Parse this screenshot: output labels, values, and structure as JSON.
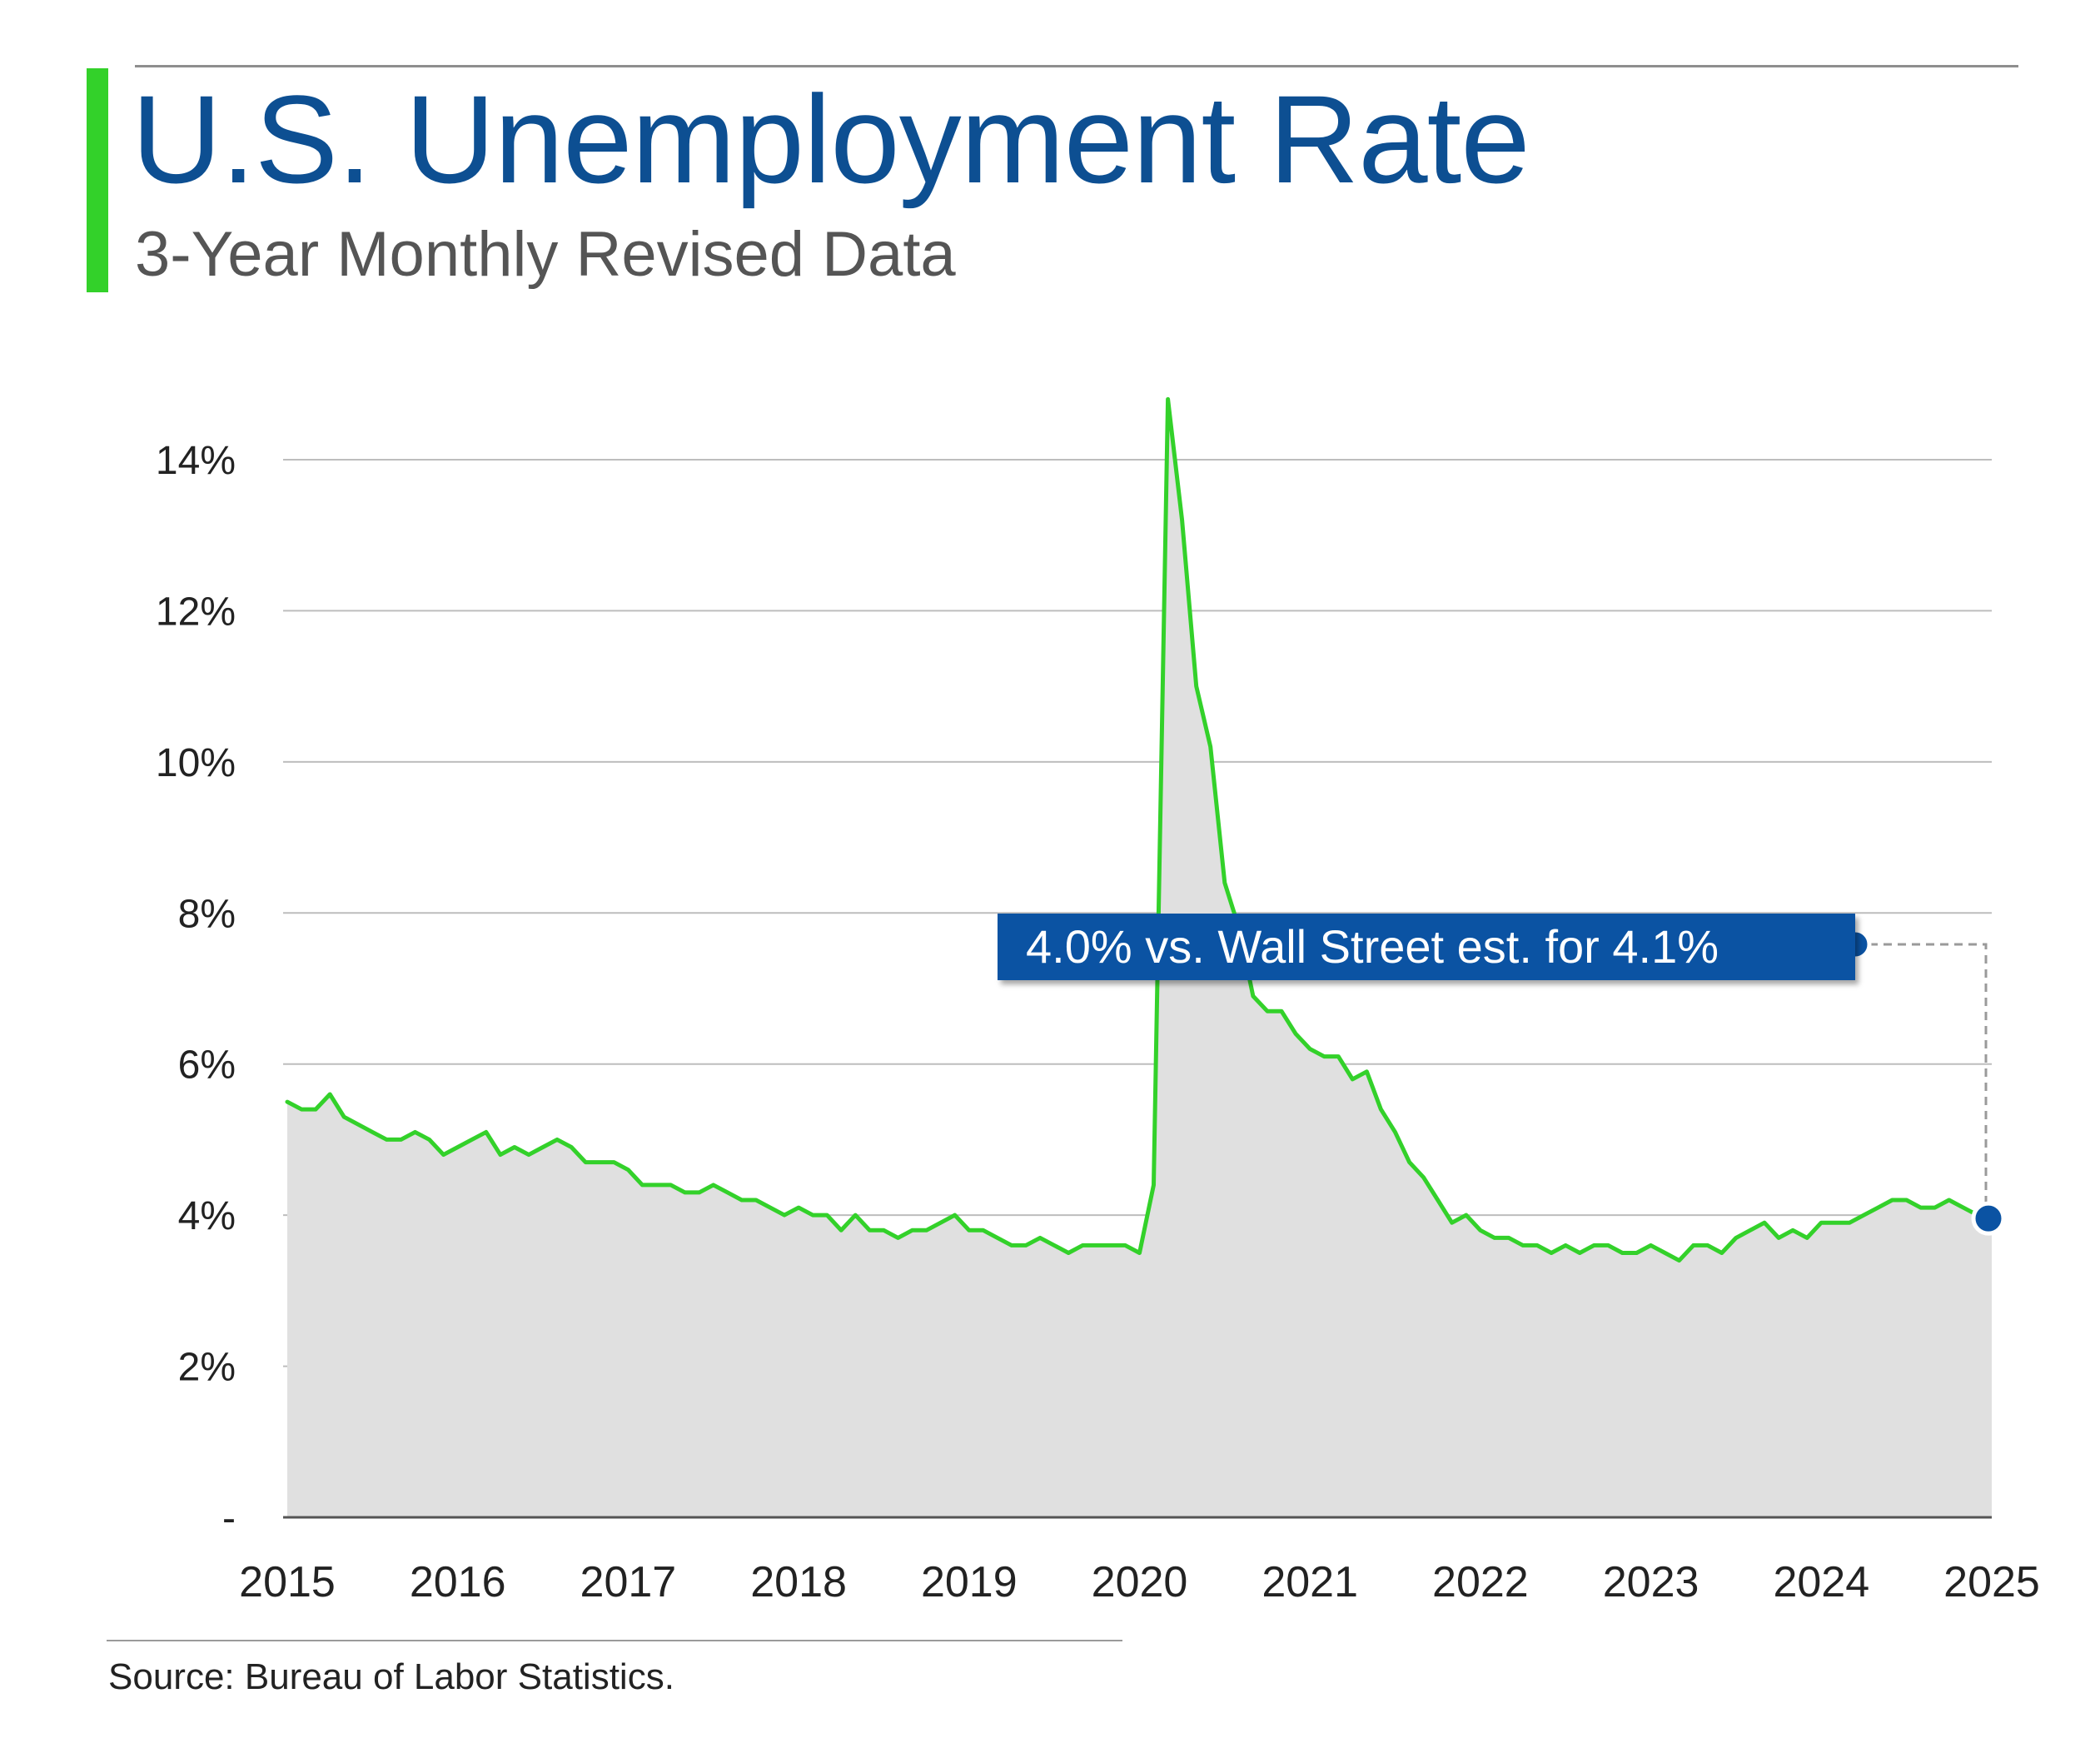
{
  "header": {
    "title": "U.S. Unemployment Rate",
    "subtitle": "3-Year Monthly Revised Data"
  },
  "footer": {
    "source": "Source: Bureau of Labor Statistics."
  },
  "annotation": {
    "text": "4.0% vs. Wall Street est. for 4.1%"
  },
  "colors": {
    "title": "#0d4f92",
    "accent": "#33d12a",
    "line": "#33d12a",
    "area": "#e0e0e0",
    "callout": "#0b53a3",
    "marker": "#0b53a3"
  },
  "chart_data": {
    "type": "area",
    "title": "U.S. Unemployment Rate",
    "subtitle": "3-Year Monthly Revised Data",
    "xlabel": "",
    "ylabel": "",
    "x_start": 2015.0,
    "x_step_years": 0.08333,
    "ylim": [
      0,
      14
    ],
    "xlim": [
      2015,
      2025
    ],
    "yticks": [
      {
        "value": 0,
        "label": "-"
      },
      {
        "value": 2,
        "label": "2%"
      },
      {
        "value": 4,
        "label": "4%"
      },
      {
        "value": 6,
        "label": "6%"
      },
      {
        "value": 8,
        "label": "8%"
      },
      {
        "value": 10,
        "label": "10%"
      },
      {
        "value": 12,
        "label": "12%"
      },
      {
        "value": 14,
        "label": "14%"
      }
    ],
    "xticks": [
      {
        "value": 2015,
        "label": "2015"
      },
      {
        "value": 2016,
        "label": "2016"
      },
      {
        "value": 2017,
        "label": "2017"
      },
      {
        "value": 2018,
        "label": "2018"
      },
      {
        "value": 2019,
        "label": "2019"
      },
      {
        "value": 2020,
        "label": "2020"
      },
      {
        "value": 2021,
        "label": "2021"
      },
      {
        "value": 2022,
        "label": "2022"
      },
      {
        "value": 2023,
        "label": "2023"
      },
      {
        "value": 2024,
        "label": "2024"
      },
      {
        "value": 2025,
        "label": "2025"
      }
    ],
    "grid": true,
    "series": [
      {
        "name": "Unemployment Rate",
        "values": [
          5.5,
          5.4,
          5.4,
          5.6,
          5.3,
          5.2,
          5.1,
          5.0,
          5.0,
          5.1,
          5.0,
          4.8,
          4.9,
          5.0,
          5.1,
          4.8,
          4.9,
          4.8,
          4.9,
          5.0,
          4.9,
          4.7,
          4.7,
          4.7,
          4.6,
          4.4,
          4.4,
          4.4,
          4.3,
          4.3,
          4.4,
          4.3,
          4.2,
          4.2,
          4.1,
          4.0,
          4.1,
          4.0,
          4.0,
          3.8,
          4.0,
          3.8,
          3.8,
          3.7,
          3.8,
          3.8,
          3.9,
          4.0,
          3.8,
          3.8,
          3.7,
          3.6,
          3.6,
          3.7,
          3.6,
          3.5,
          3.6,
          3.6,
          3.6,
          3.6,
          3.5,
          4.4,
          14.8,
          13.2,
          11.0,
          10.2,
          8.4,
          7.8,
          6.9,
          6.7,
          6.7,
          6.4,
          6.2,
          6.1,
          6.1,
          5.8,
          5.9,
          5.4,
          5.1,
          4.7,
          4.5,
          4.2,
          3.9,
          4.0,
          3.8,
          3.7,
          3.7,
          3.6,
          3.6,
          3.5,
          3.6,
          3.5,
          3.6,
          3.6,
          3.5,
          3.5,
          3.6,
          3.5,
          3.4,
          3.6,
          3.6,
          3.5,
          3.7,
          3.8,
          3.9,
          3.7,
          3.8,
          3.7,
          3.9,
          3.9,
          3.9,
          4.0,
          4.1,
          4.2,
          4.2,
          4.1,
          4.1,
          4.2,
          4.1,
          4.0
        ]
      }
    ],
    "highlight": {
      "x": 2024.917,
      "y": 4.0,
      "label": "4.0% vs. Wall Street est. for 4.1%"
    }
  }
}
